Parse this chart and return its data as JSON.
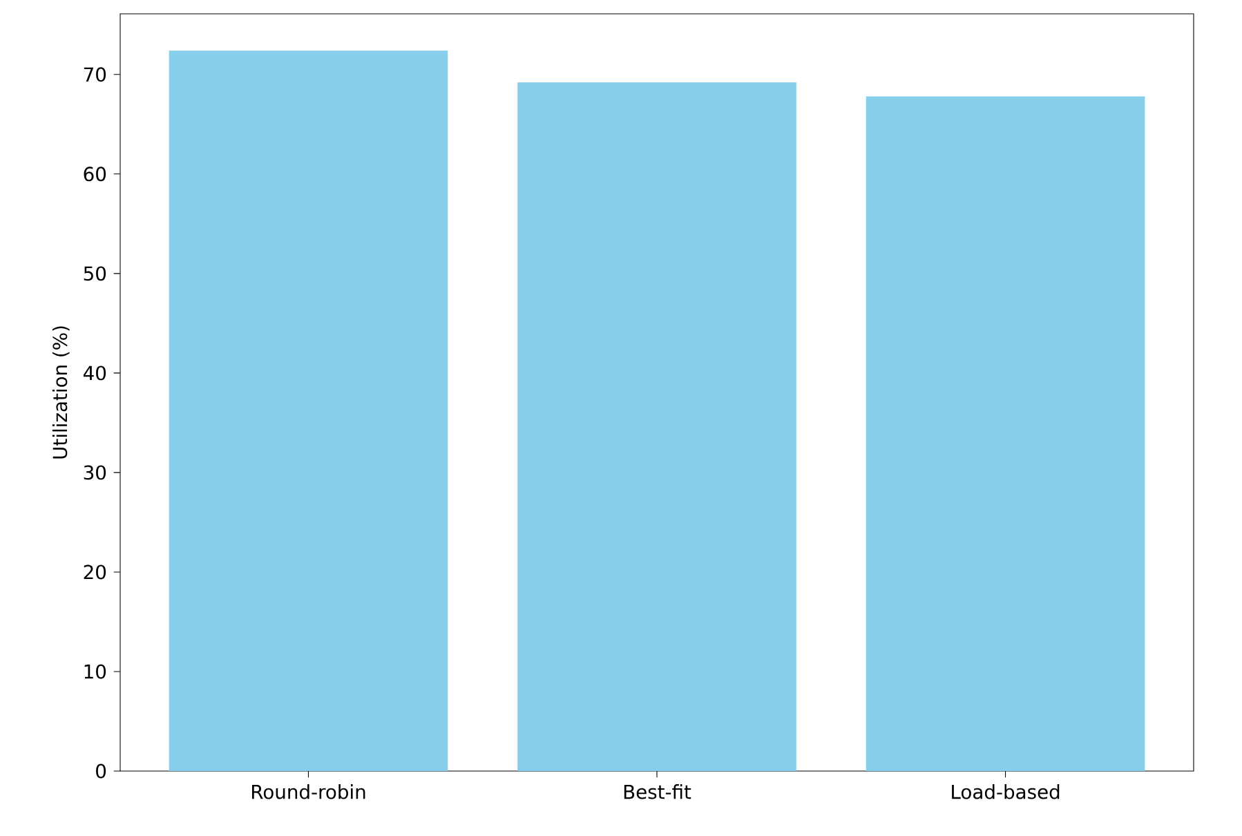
{
  "chart_data": {
    "type": "bar",
    "ylabel": "Utilization (%)",
    "categories": [
      "Round-robin",
      "Best-fit",
      "Load-based"
    ],
    "values": [
      72.4,
      69.2,
      67.8
    ],
    "color": "#87ceeb",
    "ylim": [
      0,
      76.1
    ],
    "yticks": [
      0,
      10,
      20,
      30,
      40,
      50,
      60,
      70
    ],
    "grid": false
  }
}
